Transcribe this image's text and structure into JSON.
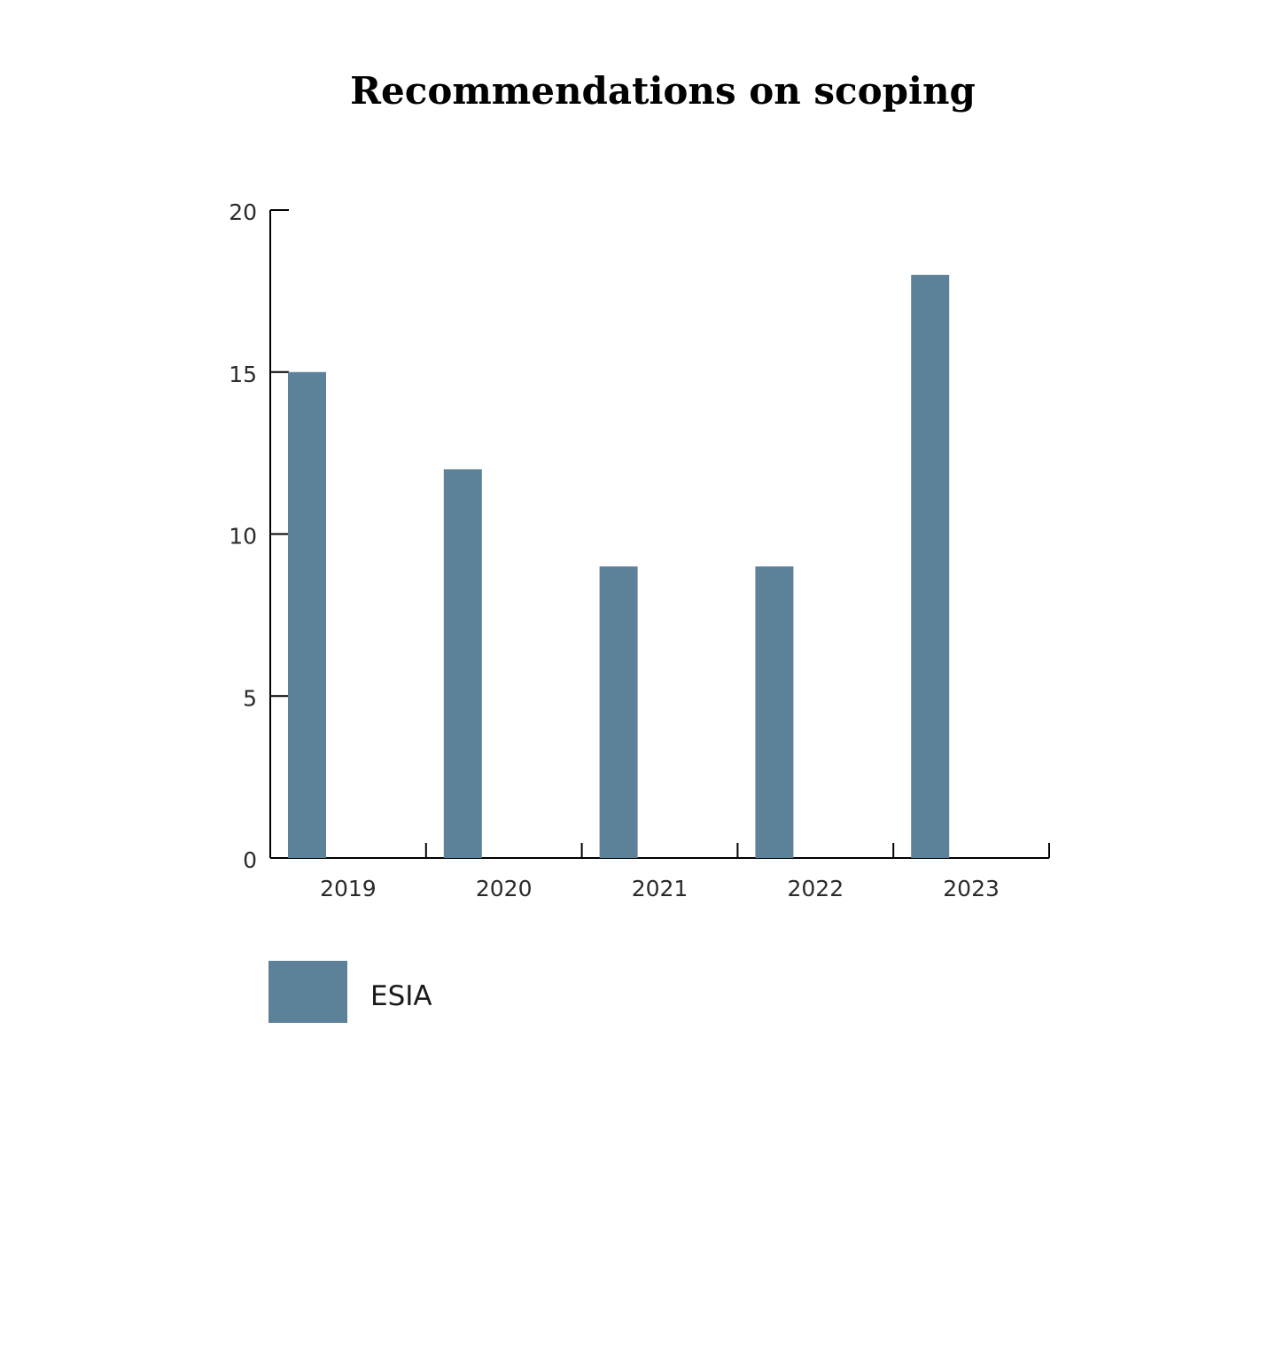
{
  "chart_data": {
    "type": "bar",
    "title": "Recommendations on scoping",
    "categories": [
      "2019",
      "2020",
      "2021",
      "2022",
      "2023"
    ],
    "series": [
      {
        "name": "ESIA",
        "values": [
          15,
          12,
          9,
          9,
          18
        ],
        "color": "#5d8199"
      }
    ],
    "yticks": [
      "0",
      "5",
      "10",
      "15",
      "20"
    ],
    "ylim": [
      0,
      20
    ],
    "xlabel": "",
    "ylabel": "",
    "grid": false,
    "legend": "bottom-left"
  }
}
